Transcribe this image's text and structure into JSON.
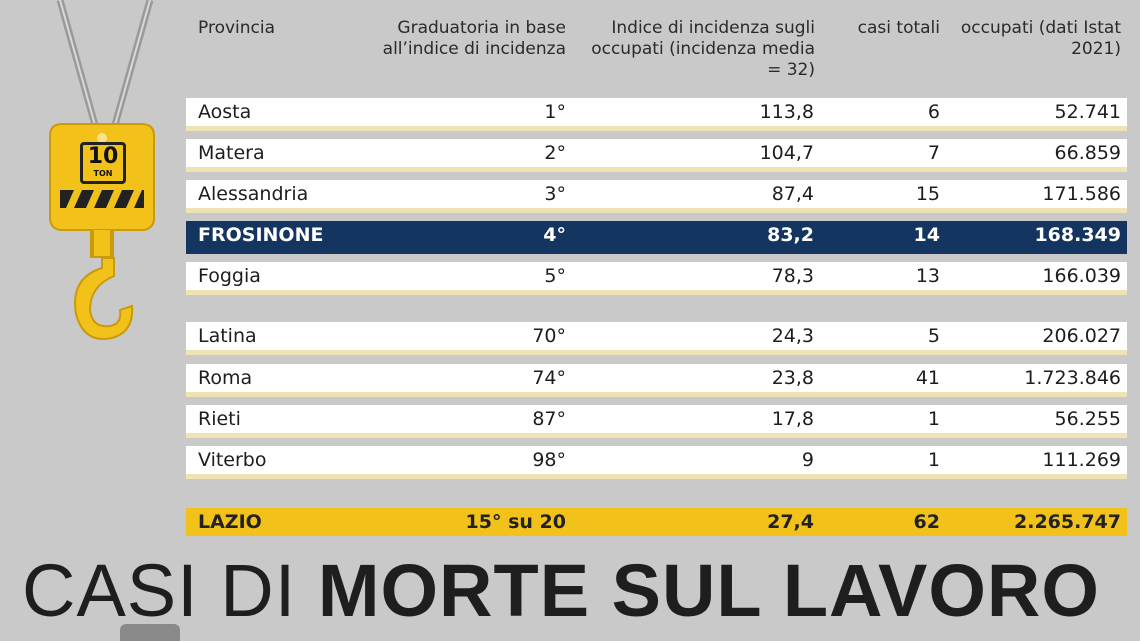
{
  "header": {
    "provincia": "Provincia",
    "graduatoria": "Graduatoria in base all’indice di incidenza",
    "indice": "Indice di incidenza sugli occupati (incidenza media = 32)",
    "casi": "casi totali",
    "occupati": "occupati (dati Istat 2021)"
  },
  "hook": {
    "big": "10",
    "small": "TON"
  },
  "rows": [
    {
      "provincia": "Aosta",
      "grad": "1°",
      "indice": "113,8",
      "casi": "6",
      "occupati": "52.741"
    },
    {
      "provincia": "Matera",
      "grad": "2°",
      "indice": "104,7",
      "casi": "7",
      "occupati": "66.859"
    },
    {
      "provincia": "Alessandria",
      "grad": "3°",
      "indice": "87,4",
      "casi": "15",
      "occupati": "171.586"
    },
    {
      "provincia": "FROSINONE",
      "grad": "4°",
      "indice": "83,2",
      "casi": "14",
      "occupati": "168.349"
    },
    {
      "provincia": "Foggia",
      "grad": "5°",
      "indice": "78,3",
      "casi": "13",
      "occupati": "166.039"
    },
    {
      "provincia": "Latina",
      "grad": "70°",
      "indice": "24,3",
      "casi": "5",
      "occupati": "206.027"
    },
    {
      "provincia": "Roma",
      "grad": "74°",
      "indice": "23,8",
      "casi": "41",
      "occupati": "1.723.846"
    },
    {
      "provincia": "Rieti",
      "grad": "87°",
      "indice": "17,8",
      "casi": "1",
      "occupati": "56.255"
    },
    {
      "provincia": "Viterbo",
      "grad": "98°",
      "indice": "9",
      "casi": "1",
      "occupati": "111.269"
    }
  ],
  "total": {
    "provincia": "LAZIO",
    "grad": "15° su 20",
    "indice": "27,4",
    "casi": "62",
    "occupati": "2.265.747"
  },
  "title": {
    "light": "CASI DI ",
    "bold": "MORTE SUL LAVORO"
  },
  "colors": {
    "highlight": "#14355f",
    "yellow": "#f2c21b"
  }
}
